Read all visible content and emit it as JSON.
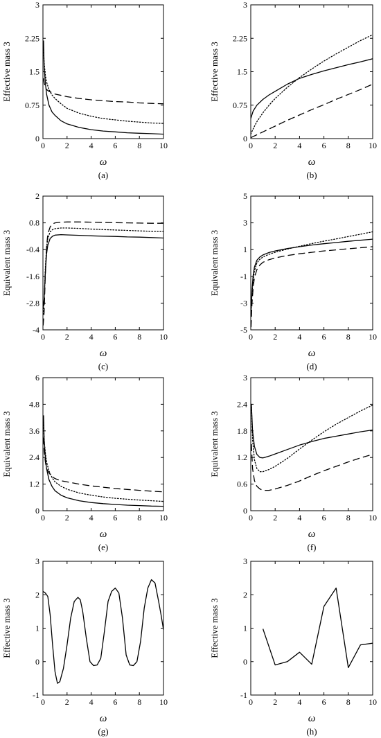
{
  "figure": {
    "panels": [
      {
        "label": "(a)",
        "ylabel": "Effective mass 3",
        "xlabel": "ω"
      },
      {
        "label": "(b)",
        "ylabel": "Effective mass 3",
        "xlabel": "ω"
      },
      {
        "label": "(c)",
        "ylabel": "Equivalent mass 3",
        "xlabel": "ω"
      },
      {
        "label": "(d)",
        "ylabel": "Equivalent mass 3",
        "xlabel": "ω"
      },
      {
        "label": "(e)",
        "ylabel": "Equivalent mass 3",
        "xlabel": "ω"
      },
      {
        "label": "(f)",
        "ylabel": "Equivalent mass 3",
        "xlabel": "ω"
      },
      {
        "label": "(g)",
        "ylabel": "Effective mass 3",
        "xlabel": "ω"
      },
      {
        "label": "(h)",
        "ylabel": "Effective mass 3",
        "xlabel": "ω"
      }
    ]
  },
  "chart_data": [
    {
      "type": "line",
      "panel": "(a)",
      "xlabel": "ω",
      "ylabel": "Effective mass 3",
      "xlim": [
        0,
        10
      ],
      "ylim": [
        0,
        3
      ],
      "xticks": [
        "0",
        "2",
        "4",
        "6",
        "8",
        "10"
      ],
      "yticks": [
        "0",
        "0.75",
        "1.5",
        "2.25",
        "3"
      ],
      "series": [
        {
          "style": "solid",
          "x": [
            0.05,
            0.1,
            0.2,
            0.3,
            0.5,
            0.75,
            1,
            1.5,
            2,
            3,
            4,
            5,
            6,
            7,
            8,
            9,
            10
          ],
          "y": [
            2.2,
            1.6,
            1.25,
            1.0,
            0.75,
            0.6,
            0.52,
            0.4,
            0.33,
            0.25,
            0.2,
            0.17,
            0.15,
            0.13,
            0.12,
            0.11,
            0.1
          ]
        },
        {
          "style": "dotted",
          "x": [
            0.05,
            0.1,
            0.2,
            0.3,
            0.5,
            0.75,
            1,
            1.5,
            2,
            3,
            4,
            5,
            6,
            7,
            8,
            9,
            10
          ],
          "y": [
            2.0,
            1.7,
            1.42,
            1.27,
            1.1,
            0.98,
            0.9,
            0.78,
            0.68,
            0.57,
            0.5,
            0.45,
            0.42,
            0.39,
            0.37,
            0.35,
            0.34
          ]
        },
        {
          "style": "dashed",
          "x": [
            0.05,
            0.1,
            0.2,
            0.3,
            0.5,
            1,
            2,
            3,
            4,
            5,
            6,
            7,
            8,
            9,
            10
          ],
          "y": [
            1.35,
            1.25,
            1.15,
            1.1,
            1.06,
            1.0,
            0.94,
            0.9,
            0.87,
            0.85,
            0.83,
            0.82,
            0.8,
            0.79,
            0.78
          ]
        }
      ]
    },
    {
      "type": "line",
      "panel": "(b)",
      "xlabel": "ω",
      "ylabel": "Effective mass 3",
      "xlim": [
        0,
        10
      ],
      "ylim": [
        0,
        3
      ],
      "xticks": [
        "0",
        "2",
        "4",
        "6",
        "8",
        "10"
      ],
      "yticks": [
        "0",
        "0.75",
        "1.5",
        "2.25",
        "3"
      ],
      "series": [
        {
          "style": "solid",
          "x": [
            0,
            0.2,
            0.5,
            1,
            1.5,
            2,
            3,
            4,
            5,
            6,
            7,
            8,
            9,
            10
          ],
          "y": [
            0.45,
            0.62,
            0.75,
            0.88,
            0.98,
            1.06,
            1.22,
            1.35,
            1.44,
            1.52,
            1.59,
            1.66,
            1.72,
            1.79
          ]
        },
        {
          "style": "dotted",
          "x": [
            0,
            0.2,
            0.5,
            1,
            1.5,
            2,
            3,
            4,
            5,
            6,
            7,
            8,
            9,
            10
          ],
          "y": [
            0.1,
            0.22,
            0.38,
            0.58,
            0.75,
            0.9,
            1.15,
            1.37,
            1.56,
            1.74,
            1.9,
            2.05,
            2.2,
            2.33
          ]
        },
        {
          "style": "dashed",
          "x": [
            0,
            1,
            2,
            3,
            4,
            5,
            6,
            7,
            8,
            9,
            10
          ],
          "y": [
            0.02,
            0.15,
            0.28,
            0.41,
            0.53,
            0.65,
            0.76,
            0.88,
            0.99,
            1.1,
            1.22
          ]
        }
      ]
    },
    {
      "type": "line",
      "panel": "(c)",
      "xlabel": "ω",
      "ylabel": "Equivalent mass 3",
      "xlim": [
        0,
        10
      ],
      "ylim": [
        -4,
        2
      ],
      "xticks": [
        "0",
        "2",
        "4",
        "6",
        "8",
        "10"
      ],
      "yticks": [
        "-4",
        "-2.8",
        "-1.6",
        "-0.4",
        "0.8",
        "2"
      ],
      "series": [
        {
          "style": "solid",
          "x": [
            0.02,
            0.1,
            0.2,
            0.3,
            0.4,
            0.6,
            0.8,
            1,
            1.5,
            2,
            3,
            4,
            5,
            6,
            7,
            8,
            9,
            10
          ],
          "y": [
            -3.0,
            -2.6,
            -1.4,
            -0.6,
            -0.2,
            0.1,
            0.2,
            0.25,
            0.27,
            0.26,
            0.24,
            0.22,
            0.2,
            0.19,
            0.17,
            0.16,
            0.14,
            0.12
          ]
        },
        {
          "style": "dotted",
          "x": [
            0.02,
            0.1,
            0.2,
            0.3,
            0.4,
            0.6,
            0.8,
            1,
            1.5,
            2,
            3,
            4,
            5,
            6,
            7,
            8,
            9,
            10
          ],
          "y": [
            -3.3,
            -2.7,
            -1.2,
            -0.3,
            0.1,
            0.4,
            0.5,
            0.54,
            0.57,
            0.57,
            0.55,
            0.52,
            0.5,
            0.48,
            0.46,
            0.44,
            0.42,
            0.41
          ]
        },
        {
          "style": "dashed",
          "x": [
            0.02,
            0.1,
            0.2,
            0.3,
            0.4,
            0.6,
            0.8,
            1,
            1.5,
            2,
            3,
            4,
            5,
            6,
            7,
            8,
            9,
            10
          ],
          "y": [
            -3.8,
            -3.2,
            -1.5,
            -0.3,
            0.3,
            0.62,
            0.75,
            0.8,
            0.83,
            0.84,
            0.84,
            0.83,
            0.82,
            0.81,
            0.8,
            0.79,
            0.78,
            0.78
          ]
        }
      ]
    },
    {
      "type": "line",
      "panel": "(d)",
      "xlabel": "ω",
      "ylabel": "Equivalent mass 3",
      "xlim": [
        0,
        10
      ],
      "ylim": [
        -5,
        5
      ],
      "xticks": [
        "0",
        "2",
        "4",
        "6",
        "8",
        "10"
      ],
      "yticks": [
        "-5",
        "-3",
        "-1",
        "1",
        "3",
        "5"
      ],
      "series": [
        {
          "style": "solid",
          "x": [
            0.02,
            0.1,
            0.2,
            0.3,
            0.5,
            0.75,
            1,
            1.5,
            2,
            3,
            4,
            5,
            6,
            7,
            8,
            9,
            10
          ],
          "y": [
            -3.5,
            -2.0,
            -0.9,
            -0.3,
            0.2,
            0.45,
            0.6,
            0.78,
            0.9,
            1.08,
            1.22,
            1.34,
            1.44,
            1.53,
            1.62,
            1.7,
            1.78
          ]
        },
        {
          "style": "dotted",
          "x": [
            0.02,
            0.1,
            0.2,
            0.3,
            0.5,
            0.75,
            1,
            1.5,
            2,
            3,
            4,
            5,
            6,
            7,
            8,
            9,
            10
          ],
          "y": [
            -3.8,
            -2.3,
            -1.3,
            -0.6,
            0.0,
            0.28,
            0.45,
            0.65,
            0.8,
            1.04,
            1.25,
            1.45,
            1.63,
            1.8,
            1.98,
            2.15,
            2.33
          ]
        },
        {
          "style": "dashed",
          "x": [
            0.02,
            0.1,
            0.2,
            0.3,
            0.5,
            0.75,
            1,
            1.5,
            2,
            3,
            4,
            5,
            6,
            7,
            8,
            9,
            10
          ],
          "y": [
            -4.8,
            -3.0,
            -1.8,
            -1.1,
            -0.5,
            -0.15,
            0.05,
            0.25,
            0.38,
            0.56,
            0.69,
            0.8,
            0.9,
            0.98,
            1.06,
            1.14,
            1.22
          ]
        }
      ]
    },
    {
      "type": "line",
      "panel": "(e)",
      "xlabel": "ω",
      "ylabel": "Equivalent mass 3",
      "xlim": [
        0,
        10
      ],
      "ylim": [
        0,
        6
      ],
      "xticks": [
        "0",
        "2",
        "4",
        "6",
        "8",
        "10"
      ],
      "yticks": [
        "0",
        "1.2",
        "2.4",
        "3.6",
        "4.8",
        "6"
      ],
      "series": [
        {
          "style": "solid",
          "x": [
            0.05,
            0.1,
            0.2,
            0.3,
            0.5,
            0.75,
            1,
            1.5,
            2,
            3,
            4,
            5,
            6,
            7,
            8,
            9,
            10
          ],
          "y": [
            4.3,
            3.2,
            2.4,
            1.9,
            1.4,
            1.1,
            0.9,
            0.7,
            0.58,
            0.45,
            0.37,
            0.32,
            0.28,
            0.25,
            0.23,
            0.21,
            0.2
          ]
        },
        {
          "style": "dotted",
          "x": [
            0.05,
            0.1,
            0.2,
            0.3,
            0.5,
            0.75,
            1,
            1.5,
            2,
            3,
            4,
            5,
            6,
            7,
            8,
            9,
            10
          ],
          "y": [
            4.0,
            3.2,
            2.6,
            2.2,
            1.8,
            1.5,
            1.3,
            1.1,
            0.97,
            0.8,
            0.7,
            0.62,
            0.56,
            0.52,
            0.48,
            0.45,
            0.42
          ]
        },
        {
          "style": "dashed",
          "x": [
            0.05,
            0.1,
            0.2,
            0.3,
            0.5,
            0.75,
            1,
            1.5,
            2,
            3,
            4,
            5,
            6,
            7,
            8,
            9,
            10
          ],
          "y": [
            3.3,
            2.7,
            2.2,
            1.9,
            1.7,
            1.55,
            1.45,
            1.35,
            1.3,
            1.2,
            1.12,
            1.06,
            1.0,
            0.96,
            0.92,
            0.88,
            0.85
          ]
        }
      ]
    },
    {
      "type": "line",
      "panel": "(f)",
      "xlabel": "ω",
      "ylabel": "Equivalent mass 3",
      "xlim": [
        0,
        10
      ],
      "ylim": [
        0,
        3
      ],
      "xticks": [
        "0",
        "2",
        "4",
        "6",
        "8",
        "10"
      ],
      "yticks": [
        "0",
        "0.6",
        "1.2",
        "1.8",
        "2.4",
        "3"
      ],
      "series": [
        {
          "style": "solid",
          "x": [
            0.05,
            0.15,
            0.3,
            0.5,
            0.75,
            1,
            1.5,
            2,
            3,
            4,
            5,
            6,
            7,
            8,
            9,
            10
          ],
          "y": [
            2.4,
            1.8,
            1.45,
            1.27,
            1.2,
            1.19,
            1.23,
            1.28,
            1.38,
            1.48,
            1.56,
            1.63,
            1.68,
            1.73,
            1.78,
            1.82
          ]
        },
        {
          "style": "dotted",
          "x": [
            0.05,
            0.15,
            0.3,
            0.5,
            0.75,
            1,
            1.5,
            2,
            3,
            4,
            5,
            6,
            7,
            8,
            9,
            10
          ],
          "y": [
            2.4,
            1.6,
            1.15,
            0.95,
            0.88,
            0.88,
            0.93,
            1.0,
            1.18,
            1.39,
            1.59,
            1.78,
            1.95,
            2.1,
            2.25,
            2.38
          ]
        },
        {
          "style": "dashed",
          "x": [
            0.05,
            0.15,
            0.3,
            0.5,
            0.75,
            1,
            1.5,
            2,
            3,
            4,
            5,
            6,
            7,
            8,
            9,
            10
          ],
          "y": [
            1.5,
            0.95,
            0.68,
            0.55,
            0.49,
            0.46,
            0.46,
            0.49,
            0.57,
            0.67,
            0.79,
            0.9,
            1.0,
            1.1,
            1.19,
            1.27
          ]
        }
      ]
    },
    {
      "type": "line",
      "panel": "(g)",
      "xlabel": "ω",
      "ylabel": "Effective mass 3",
      "xlim": [
        0,
        10
      ],
      "ylim": [
        -1,
        3
      ],
      "xticks": [
        "0",
        "2",
        "4",
        "6",
        "8",
        "10"
      ],
      "yticks": [
        "-1",
        "0",
        "1",
        "2",
        "3"
      ],
      "series": [
        {
          "style": "solid",
          "x": [
            0,
            0.2,
            0.4,
            0.6,
            0.8,
            1.0,
            1.2,
            1.4,
            1.7,
            2.0,
            2.3,
            2.6,
            2.9,
            3.1,
            3.3,
            3.6,
            3.9,
            4.2,
            4.5,
            4.8,
            5.1,
            5.4,
            5.7,
            6.0,
            6.3,
            6.6,
            6.9,
            7.2,
            7.5,
            7.8,
            8.1,
            8.4,
            8.7,
            9.0,
            9.3,
            9.6,
            9.8,
            10.0
          ],
          "y": [
            2.1,
            2.05,
            1.95,
            1.4,
            0.5,
            -0.3,
            -0.65,
            -0.6,
            -0.2,
            0.5,
            1.3,
            1.8,
            1.92,
            1.85,
            1.5,
            0.7,
            0.0,
            -0.12,
            -0.1,
            0.1,
            0.9,
            1.8,
            2.1,
            2.2,
            2.05,
            1.3,
            0.2,
            -0.1,
            -0.12,
            0.0,
            0.6,
            1.6,
            2.2,
            2.45,
            2.35,
            1.8,
            1.4,
            0.95
          ]
        }
      ]
    },
    {
      "type": "line",
      "panel": "(h)",
      "xlabel": "ω",
      "ylabel": "Effective mass 3",
      "xlim": [
        0,
        10
      ],
      "ylim": [
        -1,
        3
      ],
      "xticks": [
        "0",
        "2",
        "4",
        "6",
        "8",
        "10"
      ],
      "yticks": [
        "-1",
        "0",
        "1",
        "2",
        "3"
      ],
      "series": [
        {
          "style": "solid",
          "x": [
            1,
            2,
            3,
            4,
            5,
            6,
            7,
            8,
            9,
            10
          ],
          "y": [
            0.98,
            -0.1,
            0.0,
            0.28,
            -0.08,
            1.65,
            2.2,
            -0.18,
            0.5,
            0.55
          ]
        }
      ]
    }
  ]
}
